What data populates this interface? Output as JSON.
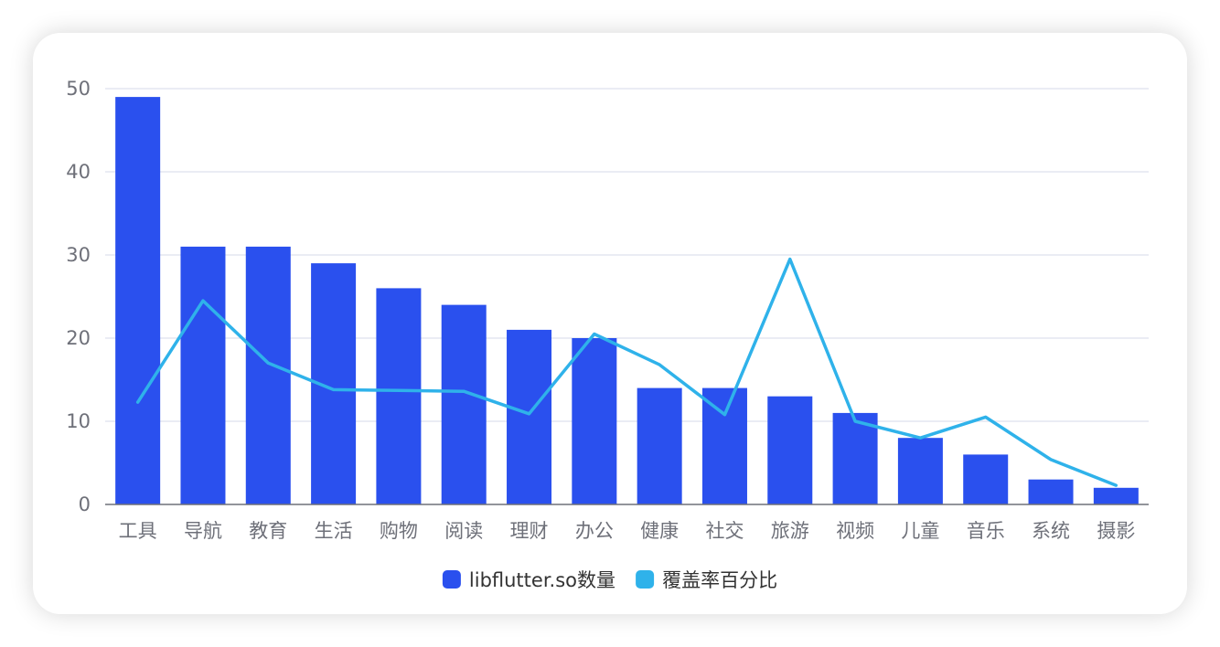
{
  "chart_data": {
    "type": "bar",
    "title": "",
    "xlabel": "",
    "ylabel": "",
    "ylim": [
      0,
      50
    ],
    "yticks": [
      0,
      10,
      20,
      30,
      40,
      50
    ],
    "grid": true,
    "legend_position": "bottom-center",
    "categories": [
      "工具",
      "导航",
      "教育",
      "生活",
      "购物",
      "阅读",
      "理财",
      "办公",
      "健康",
      "社交",
      "旅游",
      "视频",
      "儿童",
      "音乐",
      "系统",
      "摄影"
    ],
    "series": [
      {
        "name": "libflutter.so数量",
        "type": "bar",
        "color": "#2a50ee",
        "values": [
          49,
          31,
          31,
          29,
          26,
          24,
          21,
          20,
          14,
          14,
          13,
          11,
          8,
          6,
          3,
          2
        ]
      },
      {
        "name": "覆盖率百分比",
        "type": "line",
        "color": "#2fb2ea",
        "values": [
          12.3,
          24.5,
          17,
          13.8,
          13.7,
          13.6,
          10.9,
          20.5,
          16.8,
          10.8,
          29.5,
          10,
          8,
          10.5,
          5.4,
          2.3
        ]
      }
    ]
  },
  "colors": {
    "grid": "#e3e6f0",
    "axis": "#6e7079",
    "tick_text": "#6e7079",
    "legend_text": "#333333"
  }
}
